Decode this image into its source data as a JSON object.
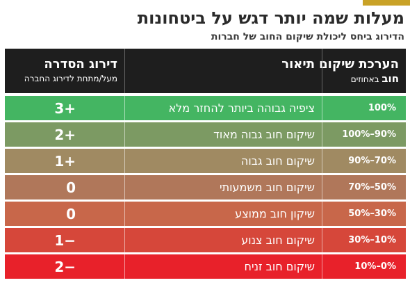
{
  "header": {
    "title": "מעלות שמה יותר דגש על ביטחונות",
    "subtitle": "הדירוג ביחס ליכולת שיקום החוב של חברות"
  },
  "table": {
    "col_recovery": {
      "title": "הערכת שיקום",
      "sub_bold": "חוב",
      "sub_rest": " באחוזים"
    },
    "col_description": {
      "title": "תיאור"
    },
    "col_rank": {
      "title": "דירוג הסדרה",
      "sub": "מעל/מתחת לדירוג החברה"
    },
    "rows": [
      {
        "recovery": "100%",
        "description": "ציפיה גבוהה ביותר להחזר מלא",
        "rank": "+3",
        "color": "#44b562"
      },
      {
        "recovery": "90%–100%",
        "description": "שיקום חוב גבוה מאוד",
        "rank": "+2",
        "color": "#7c9a63"
      },
      {
        "recovery": "70%–90%",
        "description": "שיקום חוב גבוה",
        "rank": "+1",
        "color": "#a08a62"
      },
      {
        "recovery": "50%–70%",
        "description": "שיקום חוב משמעותי",
        "rank": "0",
        "color": "#b0775a"
      },
      {
        "recovery": "30%–50%",
        "description": "שיקון חוב ממוצע",
        "rank": "0",
        "color": "#c8674a"
      },
      {
        "recovery": "10%–30%",
        "description": "שיקום חוב צנוע",
        "rank": "−1",
        "color": "#d6473a"
      },
      {
        "recovery": "0%–10%",
        "description": "שיקום חוב זניח",
        "rank": "−2",
        "color": "#e8212a"
      }
    ]
  },
  "colors": {
    "accent": "#c9a227",
    "header_bg": "#1e1e1e"
  }
}
